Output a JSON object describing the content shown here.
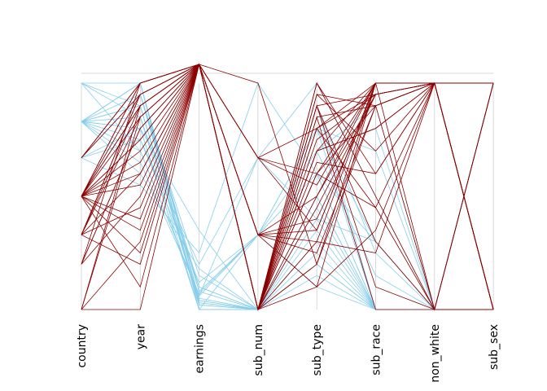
{
  "chart_data": {
    "type": "parallel_coordinates",
    "axes": [
      "country",
      "year",
      "earnings",
      "sub_num",
      "sub_type",
      "sub_race",
      "non_white",
      "sub_sex"
    ],
    "ylim": [
      0,
      1
    ],
    "colors": {
      "group_a": "#87ceeb",
      "group_b": "#8b0000",
      "axis": "#d9d9d9"
    },
    "series": [
      {
        "color_key": "group_a",
        "lines": [
          [
            0.83,
            1.0,
            0.04,
            0.0,
            0.4,
            0.0,
            0.0,
            1.0
          ],
          [
            0.67,
            0.95,
            0.08,
            0.33,
            0.8,
            0.3,
            0.0,
            1.0
          ],
          [
            1.0,
            0.9,
            0.03,
            0.0,
            0.2,
            0.0,
            0.0,
            1.0
          ],
          [
            0.83,
            0.85,
            0.1,
            0.0,
            0.7,
            0.15,
            0.0,
            1.0
          ],
          [
            0.67,
            0.8,
            0.0,
            0.0,
            0.5,
            0.0,
            0.0,
            1.0
          ],
          [
            0.83,
            0.75,
            0.12,
            0.33,
            0.6,
            0.3,
            0.0,
            1.0
          ],
          [
            0.83,
            0.9,
            0.02,
            0.0,
            0.3,
            0.0,
            0.0,
            1.0
          ],
          [
            0.83,
            0.7,
            0.06,
            0.67,
            1.0,
            0.5,
            0.0,
            1.0
          ],
          [
            1.0,
            1.0,
            0.05,
            0.0,
            0.9,
            0.25,
            0.0,
            1.0
          ],
          [
            0.67,
            0.95,
            0.15,
            0.0,
            0.8,
            0.0,
            0.0,
            1.0
          ],
          [
            0.83,
            0.8,
            0.0,
            0.33,
            0.1,
            0.0,
            0.0,
            1.0
          ],
          [
            0.83,
            0.6,
            0.18,
            0.0,
            0.7,
            0.8,
            0.0,
            1.0
          ],
          [
            0.5,
            0.95,
            0.03,
            0.0,
            0.5,
            0.0,
            0.0,
            1.0
          ],
          [
            0.83,
            1.0,
            0.08,
            0.0,
            0.35,
            0.0,
            0.0,
            1.0
          ],
          [
            0.67,
            0.55,
            0.25,
            1.0,
            0.6,
            0.0,
            0.0,
            1.0
          ],
          [
            0.83,
            0.9,
            0.02,
            0.0,
            0.2,
            0.0,
            0.0,
            1.0
          ],
          [
            0.83,
            0.65,
            0.07,
            0.33,
            0.8,
            0.7,
            0.0,
            1.0
          ],
          [
            1.0,
            0.85,
            0.0,
            0.0,
            0.45,
            0.0,
            0.0,
            1.0
          ],
          [
            0.83,
            0.95,
            0.1,
            0.0,
            0.9,
            0.0,
            0.0,
            1.0
          ],
          [
            0.67,
            0.75,
            0.2,
            0.67,
            0.4,
            0.3,
            0.0,
            1.0
          ],
          [
            0.83,
            0.9,
            0.04,
            0.0,
            0.25,
            0.0,
            0.0,
            1.0
          ],
          [
            0.83,
            0.8,
            0.35,
            0.0,
            0.6,
            0.0,
            0.0,
            1.0
          ],
          [
            1.0,
            0.7,
            0.06,
            0.33,
            0.7,
            0.9,
            0.0,
            1.0
          ],
          [
            0.83,
            1.0,
            0.0,
            0.0,
            0.15,
            0.0,
            0.0,
            1.0
          ]
        ]
      },
      {
        "color_key": "group_b",
        "lines": [
          [
            0.5,
            1.0,
            1.0,
            1.0,
            0.2,
            1.0,
            1.0,
            0.0
          ],
          [
            0.33,
            0.95,
            1.0,
            0.67,
            0.8,
            0.95,
            1.0,
            0.0
          ],
          [
            0.5,
            0.9,
            1.0,
            0.33,
            0.5,
            1.0,
            1.0,
            0.0
          ],
          [
            0.0,
            0.85,
            1.0,
            0.0,
            0.9,
            0.3,
            0.0,
            0.0
          ],
          [
            0.2,
            0.8,
            1.0,
            0.0,
            0.6,
            0.9,
            1.0,
            1.0
          ],
          [
            0.5,
            0.75,
            1.0,
            0.0,
            1.0,
            0.5,
            0.0,
            1.0
          ],
          [
            0.67,
            0.95,
            1.0,
            0.33,
            0.3,
            1.0,
            1.0,
            0.0
          ],
          [
            0.5,
            0.55,
            1.0,
            0.0,
            0.7,
            0.8,
            1.0,
            1.0
          ],
          [
            0.33,
            0.45,
            1.0,
            0.33,
            0.4,
            0.95,
            1.0,
            0.0
          ],
          [
            0.5,
            0.35,
            1.0,
            0.0,
            0.85,
            0.0,
            0.0,
            1.0
          ],
          [
            0.0,
            0.3,
            1.0,
            0.67,
            0.55,
            1.0,
            1.0,
            0.0
          ],
          [
            0.5,
            0.1,
            1.0,
            0.0,
            0.1,
            0.35,
            1.0,
            0.0
          ],
          [
            0.5,
            1.0,
            1.0,
            0.0,
            0.95,
            0.9,
            1.0,
            0.0
          ],
          [
            0.33,
            0.9,
            1.0,
            0.0,
            0.65,
            0.6,
            1.0,
            1.0
          ],
          [
            0.2,
            0.8,
            1.0,
            0.0,
            0.75,
            0.95,
            1.0,
            0.0
          ],
          [
            0.5,
            0.7,
            1.0,
            0.33,
            0.35,
            1.0,
            1.0,
            0.0
          ],
          [
            0.67,
            1.0,
            1.0,
            0.0,
            0.9,
            0.1,
            0.0,
            1.0
          ],
          [
            0.5,
            0.6,
            1.0,
            0.0,
            0.2,
            0.9,
            1.0,
            0.0
          ],
          [
            0.33,
            0.2,
            1.0,
            0.0,
            0.8,
            0.45,
            0.0,
            0.0
          ],
          [
            0.5,
            0.9,
            1.0,
            0.67,
            0.6,
            1.0,
            1.0,
            0.0
          ],
          [
            0.0,
            0.0,
            1.0,
            0.0,
            0.5,
            0.95,
            1.0,
            1.0
          ],
          [
            0.5,
            0.95,
            1.0,
            0.0,
            0.95,
            0.7,
            1.0,
            0.0
          ],
          [
            0.33,
            0.85,
            1.0,
            0.33,
            0.1,
            1.0,
            1.0,
            0.0
          ],
          [
            0.2,
            0.5,
            1.0,
            0.0,
            0.85,
            0.9,
            0.0,
            0.0
          ],
          [
            0.5,
            0.65,
            1.0,
            0.0,
            0.3,
            0.25,
            1.0,
            1.0
          ],
          [
            0.67,
            1.0,
            1.0,
            0.0,
            0.7,
            1.0,
            1.0,
            0.0
          ],
          [
            0.5,
            0.4,
            1.0,
            0.0,
            0.45,
            0.95,
            1.0,
            0.0
          ],
          [
            0.33,
            0.95,
            1.0,
            0.0,
            1.0,
            0.6,
            1.0,
            1.0
          ],
          [
            0.5,
            0.75,
            1.0,
            0.33,
            0.25,
            0.9,
            1.0,
            0.0
          ],
          [
            0.0,
            0.9,
            1.0,
            0.0,
            0.8,
            1.0,
            0.0,
            1.0
          ],
          [
            0.5,
            0.25,
            1.0,
            0.0,
            0.6,
            0.45,
            1.0,
            0.0
          ],
          [
            0.2,
            1.0,
            1.0,
            0.0,
            0.9,
            0.95,
            1.0,
            0.0
          ],
          [
            0.5,
            0.85,
            1.0,
            0.67,
            0.35,
            1.0,
            1.0,
            0.0
          ],
          [
            0.33,
            0.6,
            1.0,
            0.0,
            0.7,
            0.8,
            1.0,
            1.0
          ]
        ]
      }
    ]
  }
}
